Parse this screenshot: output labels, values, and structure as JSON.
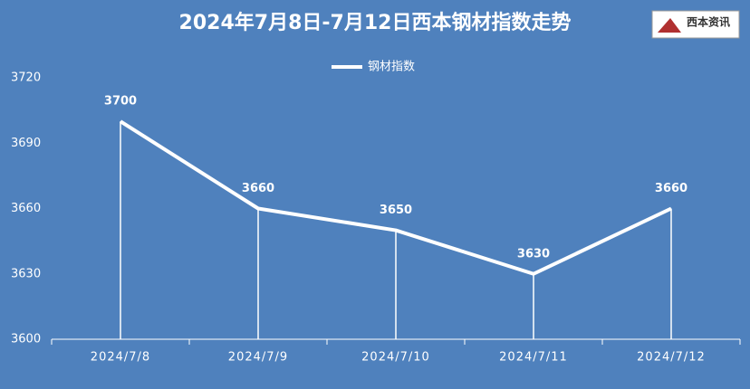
{
  "chart_data": {
    "type": "line",
    "title": "2024年7月8日-7月12日西本钢材指数走势",
    "logo": "西本资讯",
    "categories": [
      "2024/7/8",
      "2024/7/9",
      "2024/7/10",
      "2024/7/11",
      "2024/7/12"
    ],
    "series": [
      {
        "name": "钢材指数",
        "color": "#ffffff",
        "values": [
          3700,
          3660,
          3650,
          3630,
          3660
        ]
      }
    ],
    "ylim": [
      3600,
      3720
    ],
    "yticks": [
      3600,
      3630,
      3660,
      3690,
      3720
    ],
    "grid": false,
    "drop_lines": true,
    "legend": "top"
  }
}
